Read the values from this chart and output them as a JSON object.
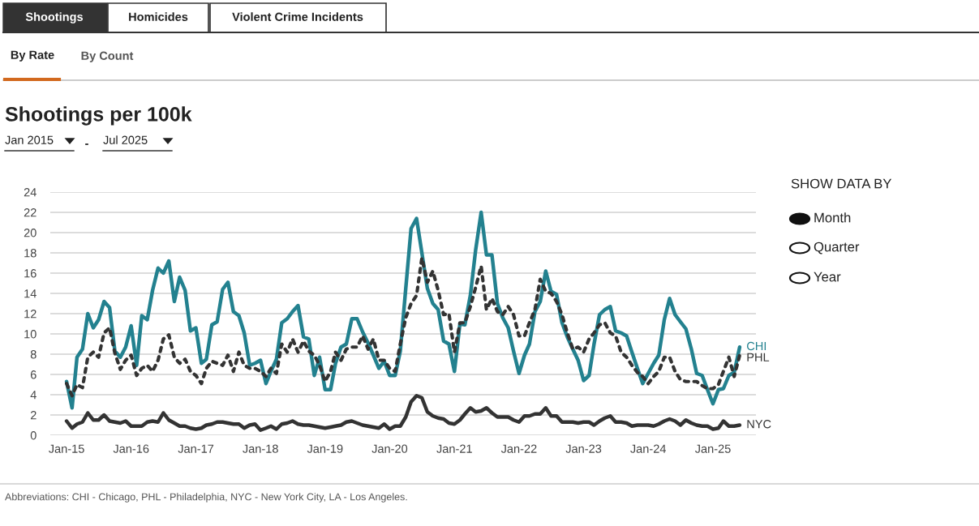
{
  "chart_data": {
    "type": "line",
    "title": "Shootings per 100k",
    "x": [
      "2015-01",
      "2015-02",
      "2015-03",
      "2015-04",
      "2015-05",
      "2015-06",
      "2015-07",
      "2015-08",
      "2015-09",
      "2015-10",
      "2015-11",
      "2015-12",
      "2016-01",
      "2016-02",
      "2016-03",
      "2016-04",
      "2016-05",
      "2016-06",
      "2016-07",
      "2016-08",
      "2016-09",
      "2016-10",
      "2016-11",
      "2016-12",
      "2017-01",
      "2017-02",
      "2017-03",
      "2017-04",
      "2017-05",
      "2017-06",
      "2017-07",
      "2017-08",
      "2017-09",
      "2017-10",
      "2017-11",
      "2017-12",
      "2018-01",
      "2018-02",
      "2018-03",
      "2018-04",
      "2018-05",
      "2018-06",
      "2018-07",
      "2018-08",
      "2018-09",
      "2018-10",
      "2018-11",
      "2018-12",
      "2019-01",
      "2019-02",
      "2019-03",
      "2019-04",
      "2019-05",
      "2019-06",
      "2019-07",
      "2019-08",
      "2019-09",
      "2019-10",
      "2019-11",
      "2019-12",
      "2020-01",
      "2020-02",
      "2020-03",
      "2020-04",
      "2020-05",
      "2020-06",
      "2020-07",
      "2020-08",
      "2020-09",
      "2020-10",
      "2020-11",
      "2020-12",
      "2021-01",
      "2021-02",
      "2021-03",
      "2021-04",
      "2021-05",
      "2021-06",
      "2021-07",
      "2021-08",
      "2021-09",
      "2021-10",
      "2021-11",
      "2021-12",
      "2022-01",
      "2022-02",
      "2022-03",
      "2022-04",
      "2022-05",
      "2022-06",
      "2022-07",
      "2022-08",
      "2022-09",
      "2022-10",
      "2022-11",
      "2022-12",
      "2023-01",
      "2023-02",
      "2023-03",
      "2023-04",
      "2023-05",
      "2023-06",
      "2023-07",
      "2023-08",
      "2023-09",
      "2023-10",
      "2023-11",
      "2023-12",
      "2024-01",
      "2024-02",
      "2024-03",
      "2024-04",
      "2024-05",
      "2024-06",
      "2024-07",
      "2024-08",
      "2024-09",
      "2024-10",
      "2024-11",
      "2024-12",
      "2025-01",
      "2025-02",
      "2025-03",
      "2025-04",
      "2025-05",
      "2025-06"
    ],
    "series": [
      {
        "name": "CHI",
        "color": "#23818f",
        "line_style": "solid",
        "values": [
          5.3,
          2.7,
          7.7,
          8.5,
          12.0,
          10.6,
          11.4,
          13.2,
          12.6,
          8.3,
          7.7,
          8.7,
          10.8,
          6.9,
          11.8,
          11.4,
          14.3,
          16.5,
          16.0,
          17.2,
          13.2,
          15.6,
          14.3,
          10.3,
          10.6,
          7.1,
          7.5,
          10.9,
          11.2,
          14.4,
          15.1,
          12.2,
          11.8,
          10.1,
          6.9,
          7.1,
          7.4,
          5.1,
          6.3,
          7.5,
          11.1,
          11.5,
          12.2,
          12.8,
          9.7,
          9.5,
          5.9,
          7.7,
          4.5,
          4.5,
          7.1,
          8.7,
          9.0,
          11.5,
          11.5,
          10.2,
          9.1,
          7.9,
          6.6,
          7.3,
          5.9,
          5.9,
          8.3,
          14.5,
          20.4,
          21.4,
          18.0,
          14.5,
          13.0,
          12.4,
          9.3,
          9.0,
          6.3,
          11.0,
          10.9,
          13.8,
          18.3,
          22.0,
          17.8,
          17.8,
          13.0,
          11.6,
          10.6,
          8.3,
          6.1,
          7.9,
          9.0,
          12.2,
          13.2,
          16.2,
          14.2,
          13.9,
          11.1,
          9.7,
          8.5,
          7.4,
          5.4,
          5.9,
          9.0,
          11.9,
          12.4,
          12.7,
          10.3,
          10.1,
          9.8,
          8.2,
          6.6,
          5.1,
          6.1,
          7.1,
          7.9,
          11.4,
          13.5,
          11.9,
          11.2,
          10.5,
          8.5,
          6.1,
          5.9,
          4.5,
          3.1,
          4.5,
          4.6,
          5.9,
          6.2,
          8.7
        ]
      },
      {
        "name": "PHL",
        "color": "#333333",
        "line_style": "dotted",
        "values": [
          5.1,
          3.9,
          5.0,
          4.7,
          7.7,
          8.2,
          7.7,
          10.1,
          10.6,
          8.1,
          6.5,
          7.4,
          7.9,
          5.9,
          6.6,
          6.9,
          6.3,
          7.4,
          9.5,
          9.9,
          7.7,
          7.1,
          7.5,
          6.3,
          5.9,
          5.1,
          6.6,
          7.3,
          7.1,
          6.9,
          7.9,
          6.3,
          8.2,
          6.9,
          6.6,
          6.6,
          6.3,
          5.8,
          6.6,
          6.1,
          9.0,
          8.2,
          9.5,
          8.2,
          9.3,
          8.3,
          7.9,
          6.9,
          5.3,
          6.3,
          8.2,
          7.4,
          8.5,
          8.7,
          8.7,
          9.8,
          8.5,
          9.5,
          7.4,
          7.4,
          6.6,
          6.3,
          9.0,
          11.6,
          13.0,
          13.8,
          17.5,
          15.1,
          16.2,
          14.3,
          11.9,
          12.0,
          8.2,
          11.1,
          11.1,
          12.7,
          14.6,
          16.7,
          12.4,
          13.5,
          12.2,
          11.9,
          12.7,
          11.9,
          9.8,
          9.8,
          11.1,
          12.4,
          15.4,
          14.2,
          14.0,
          13.2,
          11.9,
          10.1,
          8.5,
          8.7,
          8.2,
          9.5,
          10.1,
          10.9,
          11.1,
          10.1,
          9.8,
          8.2,
          7.7,
          6.9,
          6.2,
          5.8,
          5.1,
          5.8,
          6.3,
          7.7,
          7.7,
          6.3,
          5.5,
          5.3,
          5.3,
          5.3,
          4.9,
          4.6,
          4.6,
          5.0,
          6.3,
          7.7,
          5.8,
          7.9
        ]
      },
      {
        "name": "NYC",
        "color": "#333333",
        "line_style": "solid",
        "values": [
          1.4,
          0.7,
          1.1,
          1.3,
          2.2,
          1.5,
          1.5,
          2.0,
          1.4,
          1.3,
          1.2,
          1.4,
          0.9,
          0.9,
          0.9,
          1.3,
          1.4,
          1.3,
          2.2,
          1.5,
          1.2,
          0.9,
          0.9,
          0.7,
          0.6,
          0.7,
          1.0,
          1.1,
          1.3,
          1.3,
          1.2,
          1.1,
          1.1,
          0.7,
          1.0,
          1.1,
          0.5,
          0.7,
          0.9,
          0.6,
          1.1,
          1.2,
          1.4,
          1.1,
          1.0,
          1.0,
          0.9,
          0.8,
          0.7,
          0.8,
          0.9,
          1.0,
          1.3,
          1.4,
          1.2,
          1.0,
          0.9,
          0.8,
          0.7,
          1.1,
          0.6,
          0.9,
          0.9,
          1.8,
          3.3,
          3.9,
          3.7,
          2.3,
          1.9,
          1.7,
          1.6,
          1.2,
          1.1,
          1.5,
          2.1,
          2.7,
          2.3,
          2.4,
          2.7,
          2.2,
          1.8,
          1.8,
          1.8,
          1.5,
          1.3,
          1.9,
          1.9,
          2.1,
          2.1,
          2.7,
          1.9,
          1.9,
          1.3,
          1.3,
          1.3,
          1.2,
          1.3,
          1.3,
          1.0,
          1.4,
          1.7,
          1.9,
          1.3,
          1.3,
          1.2,
          0.9,
          1.0,
          1.0,
          1.0,
          0.9,
          1.1,
          1.4,
          1.6,
          1.4,
          1.0,
          1.5,
          1.2,
          1.0,
          0.9,
          0.9,
          0.6,
          0.7,
          1.4,
          0.9,
          0.9,
          1.0
        ]
      }
    ],
    "xlim": [
      "2014-10",
      "2025-09"
    ],
    "xticks": [
      {
        "value": "2015-01",
        "label": "Jan-15"
      },
      {
        "value": "2016-01",
        "label": "Jan-16"
      },
      {
        "value": "2017-01",
        "label": "Jan-17"
      },
      {
        "value": "2018-01",
        "label": "Jan-18"
      },
      {
        "value": "2019-01",
        "label": "Jan-19"
      },
      {
        "value": "2020-01",
        "label": "Jan-20"
      },
      {
        "value": "2021-01",
        "label": "Jan-21"
      },
      {
        "value": "2022-01",
        "label": "Jan-22"
      },
      {
        "value": "2023-01",
        "label": "Jan-23"
      },
      {
        "value": "2024-01",
        "label": "Jan-24"
      },
      {
        "value": "2025-01",
        "label": "Jan-25"
      }
    ],
    "ylim": [
      0,
      24
    ],
    "yticks": [
      0,
      2,
      4,
      6,
      8,
      10,
      12,
      14,
      16,
      18,
      20,
      22,
      24
    ],
    "grid": "y",
    "legend": false,
    "marker": "none",
    "annotations": [
      "Shootings",
      "Homicides",
      "Violent Crime Incidents",
      "By Rate",
      "By Count",
      "Jan 2015",
      "-",
      "Jul 2025",
      "SHOW DATA BY",
      "Month",
      "Quarter",
      "Year",
      "Abbreviations: CHI - Chicago, PHL - Philadelphia, NYC - New York City, LA - Los Angeles."
    ]
  }
}
